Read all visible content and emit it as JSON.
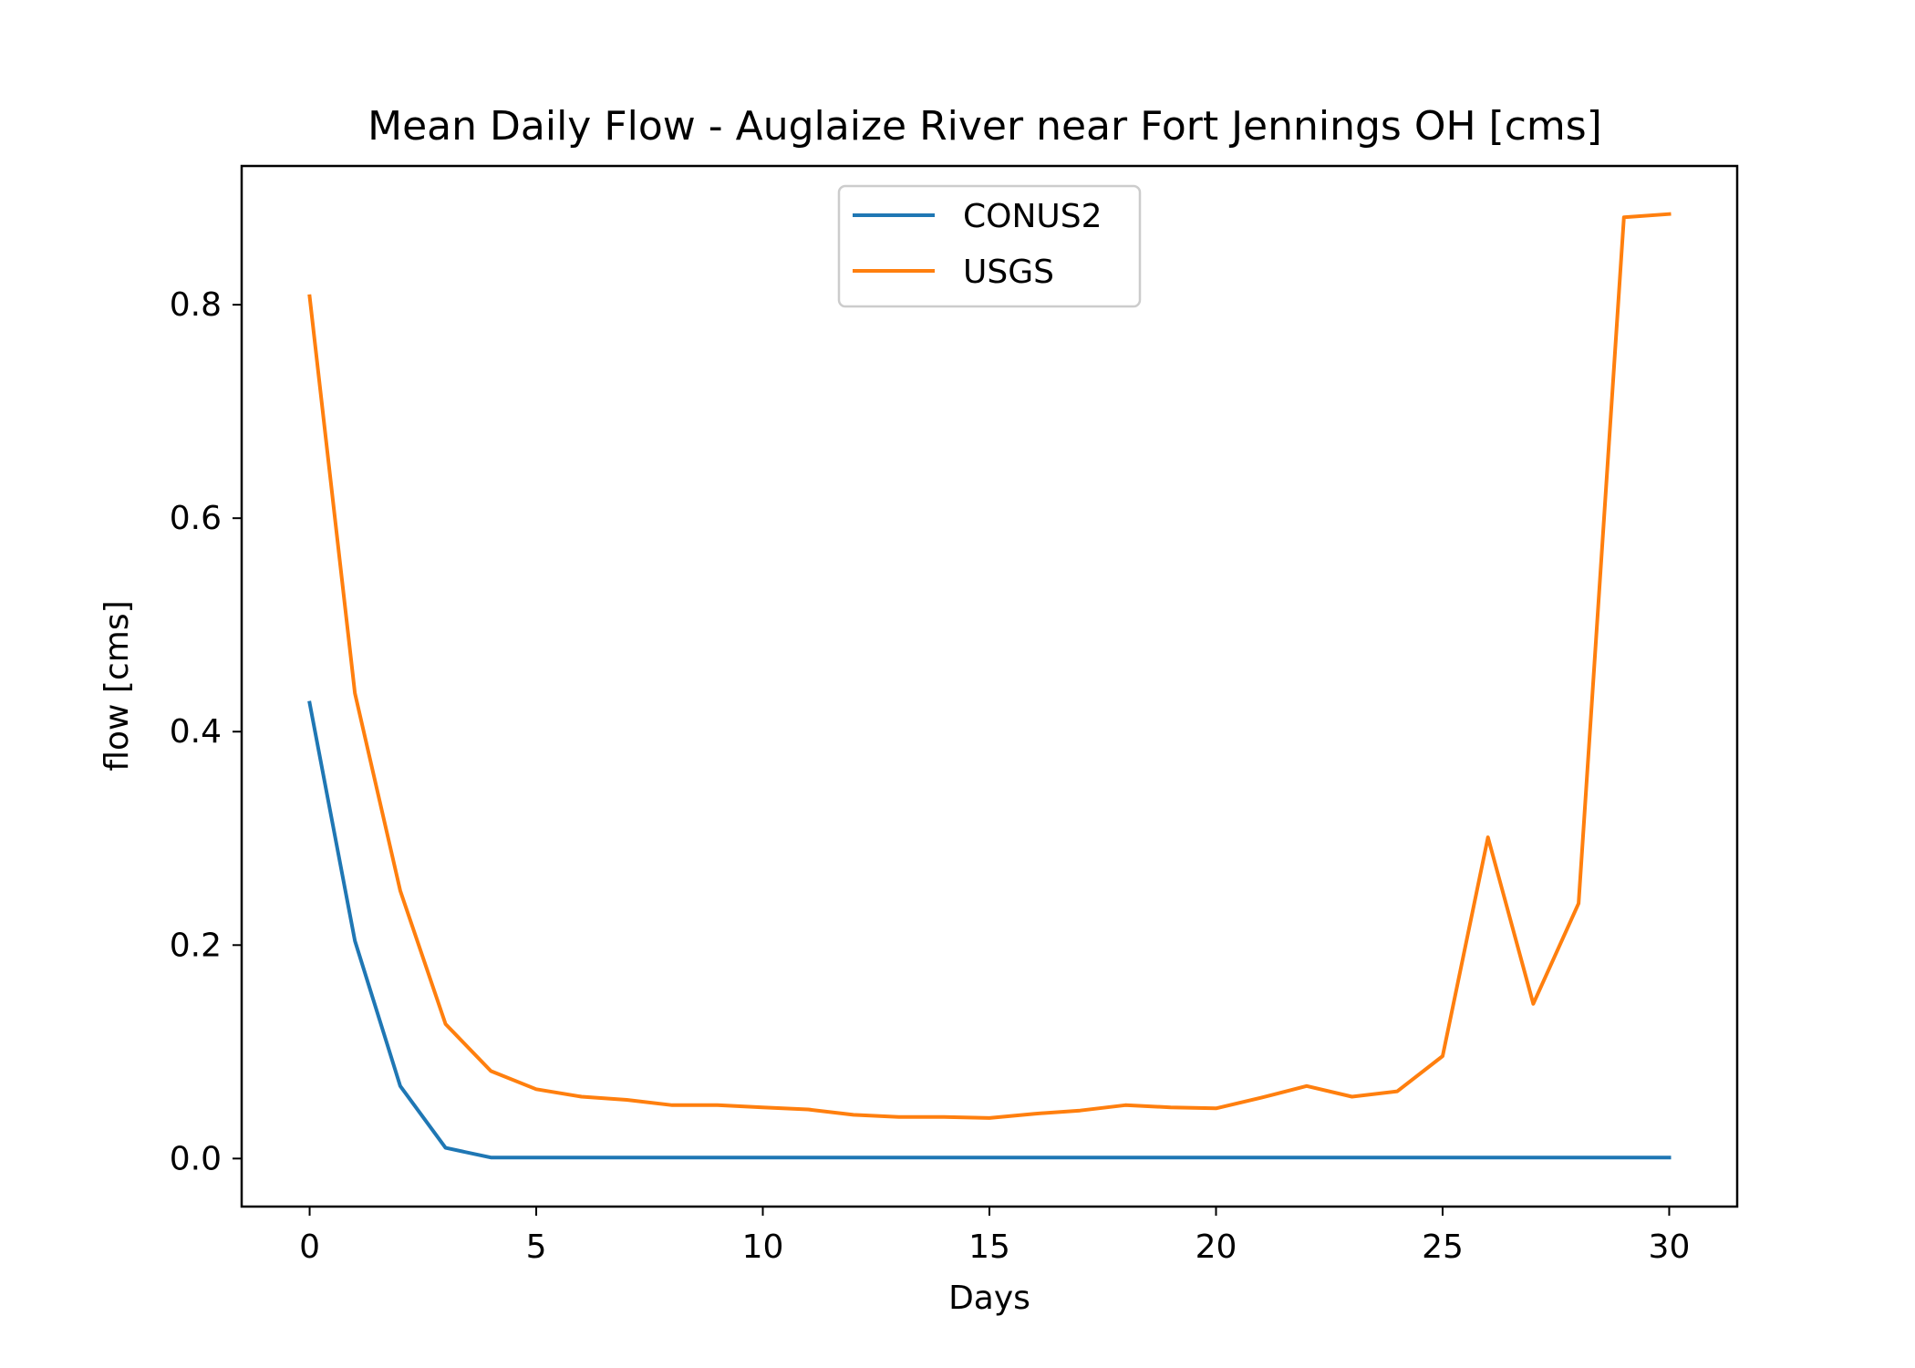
{
  "chart_data": {
    "type": "line",
    "title": "Mean Daily Flow - Auglaize River near Fort Jennings OH [cms]",
    "xlabel": "Days",
    "ylabel": "flow [cms]",
    "xlim": [
      -1.5,
      31.5
    ],
    "ylim": [
      -0.045,
      0.93
    ],
    "xticks": [
      0,
      5,
      10,
      15,
      20,
      25,
      30
    ],
    "yticks": [
      0.0,
      0.2,
      0.4,
      0.6,
      0.8
    ],
    "xtick_labels": [
      "0",
      "5",
      "10",
      "15",
      "20",
      "25",
      "30"
    ],
    "ytick_labels": [
      "0.0",
      "0.2",
      "0.4",
      "0.6",
      "0.8"
    ],
    "grid": false,
    "legend_position": "upper center",
    "x": [
      0,
      1,
      2,
      3,
      4,
      5,
      6,
      7,
      8,
      9,
      10,
      11,
      12,
      13,
      14,
      15,
      16,
      17,
      18,
      19,
      20,
      21,
      22,
      23,
      24,
      25,
      26,
      27,
      28,
      29,
      30
    ],
    "series": [
      {
        "name": "CONUS2",
        "color": "#1f77b4",
        "values": [
          0.427,
          0.204,
          0.068,
          0.01,
          0.001,
          0.001,
          0.001,
          0.001,
          0.001,
          0.001,
          0.001,
          0.001,
          0.001,
          0.001,
          0.001,
          0.001,
          0.001,
          0.001,
          0.001,
          0.001,
          0.001,
          0.001,
          0.001,
          0.001,
          0.001,
          0.001,
          0.001,
          0.001,
          0.001,
          0.001,
          0.001
        ]
      },
      {
        "name": "USGS",
        "color": "#ff7f0e",
        "values": [
          0.808,
          0.436,
          0.251,
          0.126,
          0.082,
          0.065,
          0.058,
          0.055,
          0.05,
          0.05,
          0.048,
          0.046,
          0.041,
          0.039,
          0.039,
          0.038,
          0.042,
          0.045,
          0.05,
          0.048,
          0.047,
          0.057,
          0.068,
          0.058,
          0.063,
          0.096,
          0.301,
          0.145,
          0.239,
          0.882,
          0.885
        ]
      }
    ]
  }
}
